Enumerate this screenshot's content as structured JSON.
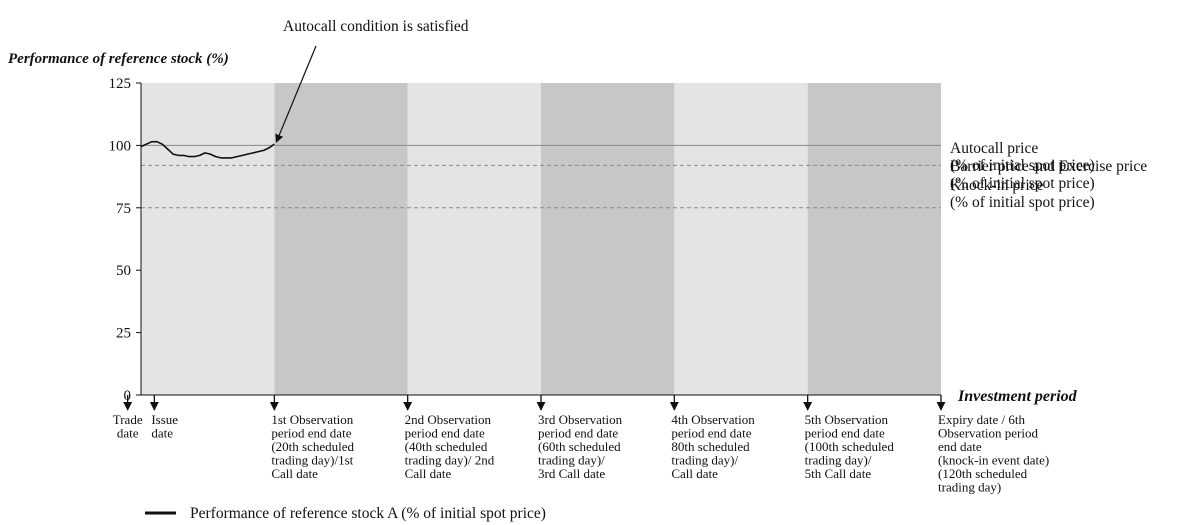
{
  "chart_data": {
    "type": "line",
    "title": "",
    "ylabel": "Performance of reference stock (%)",
    "xlabel": "Investment period",
    "ylim": [
      0,
      125
    ],
    "yticks": [
      0,
      25,
      50,
      75,
      100,
      125
    ],
    "grid": false,
    "x_unit": "scheduled trading days",
    "xlim": [
      0,
      120
    ],
    "period_bands": [
      {
        "start": 0,
        "end": 20,
        "shade": "light"
      },
      {
        "start": 20,
        "end": 40,
        "shade": "dark"
      },
      {
        "start": 40,
        "end": 60,
        "shade": "light"
      },
      {
        "start": 60,
        "end": 80,
        "shade": "dark"
      },
      {
        "start": 80,
        "end": 100,
        "shade": "light"
      },
      {
        "start": 100,
        "end": 120,
        "shade": "dark"
      }
    ],
    "reference_lines": [
      {
        "y": 100,
        "style": "solid",
        "label_lines": [
          "Autocall price",
          "(% of initial spot price)"
        ]
      },
      {
        "y": 92,
        "style": "dashed",
        "label_lines": [
          "Barrier price and Exercise price",
          "(% of initial spot price)"
        ]
      },
      {
        "y": 75,
        "style": "dashed",
        "label_lines": [
          "Knock-in price",
          "(% of initial spot price)"
        ]
      }
    ],
    "series": [
      {
        "name": "Performance of reference stock A (% of initial spot price)",
        "x": [
          0,
          0.8,
          1.6,
          2.4,
          3.2,
          4.0,
          4.8,
          5.6,
          6.4,
          7.2,
          8.0,
          8.8,
          9.6,
          10.4,
          11.2,
          12.0,
          12.8,
          13.6,
          14.4,
          15.2,
          16.0,
          16.8,
          17.6,
          18.4,
          19.2,
          20.0
        ],
        "values": [
          99.5,
          100.5,
          101.5,
          101.5,
          100.5,
          98.5,
          96.5,
          96.0,
          96.0,
          95.5,
          95.5,
          96.0,
          97.0,
          96.5,
          95.5,
          95.0,
          95.0,
          95.0,
          95.5,
          96.0,
          96.5,
          97.0,
          97.5,
          98.0,
          99.0,
          100.5
        ]
      }
    ],
    "x_events": [
      {
        "x": -2,
        "label_lines": [
          "Trade",
          "date"
        ]
      },
      {
        "x": 2,
        "label_lines": [
          "Issue",
          "date"
        ]
      },
      {
        "x": 20,
        "label_lines": [
          "1st Observation",
          "period end date",
          "(20th scheduled",
          "trading day)/1st",
          "Call date"
        ]
      },
      {
        "x": 40,
        "label_lines": [
          "2nd Observation",
          "period end date",
          "(40th scheduled",
          "trading day)/ 2nd",
          "Call date"
        ]
      },
      {
        "x": 60,
        "label_lines": [
          "3rd Observation",
          "period end date",
          "(60th scheduled",
          "trading day)/",
          "3rd Call date"
        ]
      },
      {
        "x": 80,
        "label_lines": [
          "4th Observation",
          "period end date",
          "80th scheduled",
          "trading day)/",
          "Call date"
        ]
      },
      {
        "x": 100,
        "label_lines": [
          "5th Observation",
          "period end date",
          "(100th scheduled",
          "trading day)/",
          "5th Call date"
        ]
      },
      {
        "x": 120,
        "label_lines": [
          "Expiry date / 6th",
          "Observation period",
          "end date",
          "(knock-in event date)",
          "(120th scheduled",
          "trading day)"
        ]
      }
    ],
    "annotations": [
      {
        "text": "Autocall condition is satisfied",
        "points_to": {
          "x": 20,
          "y": 100.5
        }
      }
    ],
    "legend": {
      "position": "bottom-left"
    }
  },
  "colors": {
    "band_light": "#e4e4e4",
    "band_dark": "#c5c7c9",
    "series_line": "#111111",
    "ref_line": "#8a8a8a"
  }
}
